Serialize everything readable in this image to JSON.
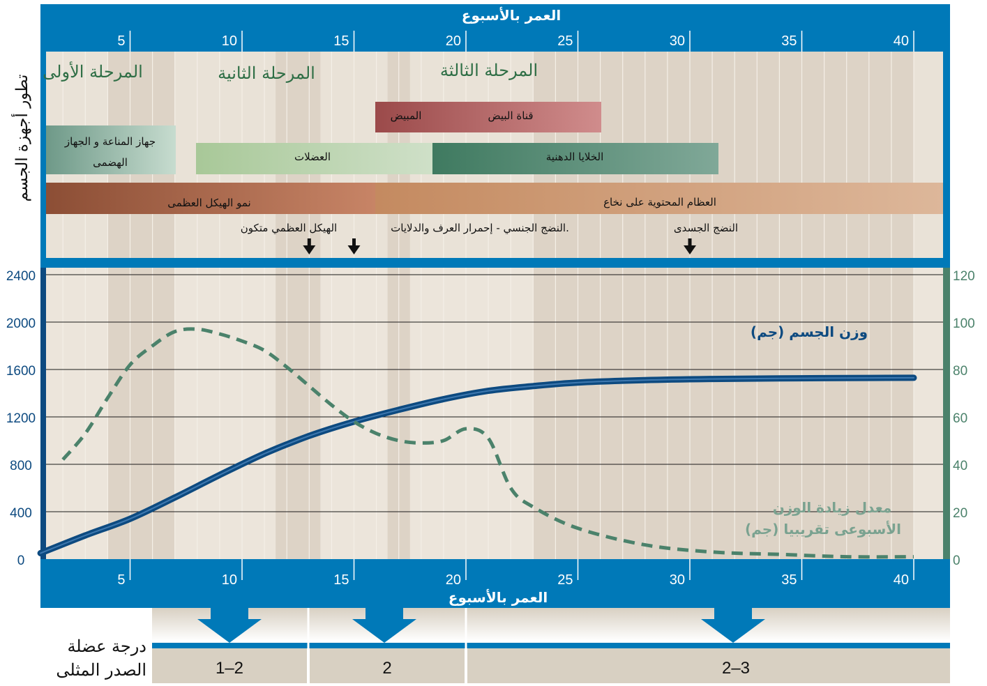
{
  "side_title": "تطور أجهزة الجسم",
  "top_axis_label": "العمر بالأسبوع",
  "bottom_axis_label": "العمر بالأسبوع",
  "stages": [
    "المرحلة الأولى",
    "المرحلة الثانية",
    "المرحلة الثالثة"
  ],
  "bars": {
    "ovary": "المبيض",
    "oviduct": "قناة البيض",
    "immune": "جهاز المناعة و الجهاز الهضمى",
    "muscles": "العضلات",
    "fat": "الخلايا الدهنية",
    "skeleton": "نمو الهيكل العظمى",
    "marrow": "العظام المحتوية على نخاع"
  },
  "events": [
    {
      "text": "الهيكل العظمي متكون",
      "week": 13
    },
    {
      "text": ".النضج الجنسي - إحمرار العرف والدلايات",
      "week": 15
    },
    {
      "text": "النضج الجسدى",
      "week": 30
    }
  ],
  "grade": {
    "title_line1": "درجة عضلة",
    "title_line2": "الصدر المثلى",
    "values": [
      "1–2",
      "2",
      "2–3"
    ]
  },
  "colors": {
    "frame_blue": "#0079b8",
    "weight_line": "#0d4a80",
    "gain_line": "#4b826b",
    "right_axis": "#4b826b"
  },
  "chart_data": {
    "type": "line",
    "x_range": [
      0,
      40
    ],
    "x_ticks": [
      5,
      10,
      15,
      20,
      25,
      30,
      35,
      40
    ],
    "ylim_left": [
      0,
      2400
    ],
    "y_ticks_left": [
      0,
      400,
      800,
      1200,
      1600,
      2000,
      2400
    ],
    "ylim_right": [
      0,
      120
    ],
    "y_ticks_right": [
      0,
      20,
      40,
      60,
      80,
      100,
      120
    ],
    "grid": true,
    "series": [
      {
        "name": "وزن الجسم (جم)",
        "axis": "left",
        "style": "solid",
        "x": [
          1,
          3,
          5,
          7,
          9,
          11,
          13,
          15,
          17,
          19,
          21,
          23,
          25,
          28,
          31,
          34,
          37,
          40
        ],
        "y": [
          50,
          200,
          340,
          520,
          710,
          890,
          1040,
          1160,
          1260,
          1350,
          1420,
          1460,
          1490,
          1510,
          1520,
          1525,
          1528,
          1530
        ]
      },
      {
        "name": "معدل زيادة الوزن الأسبوعى تقريبيا (جم)",
        "axis": "right",
        "style": "dashed",
        "x": [
          2,
          3,
          4,
          5,
          6,
          7,
          8,
          9,
          10,
          11,
          12,
          13,
          14,
          15,
          16,
          17,
          18,
          19,
          20,
          21,
          22,
          23,
          25,
          28,
          31,
          34,
          37,
          40
        ],
        "y": [
          42,
          53,
          68,
          82,
          90,
          96,
          97,
          95,
          92,
          88,
          81,
          73,
          65,
          58,
          53,
          50,
          49,
          50,
          55,
          51,
          30,
          22,
          13,
          6,
          3,
          2,
          1,
          1
        ]
      }
    ]
  }
}
